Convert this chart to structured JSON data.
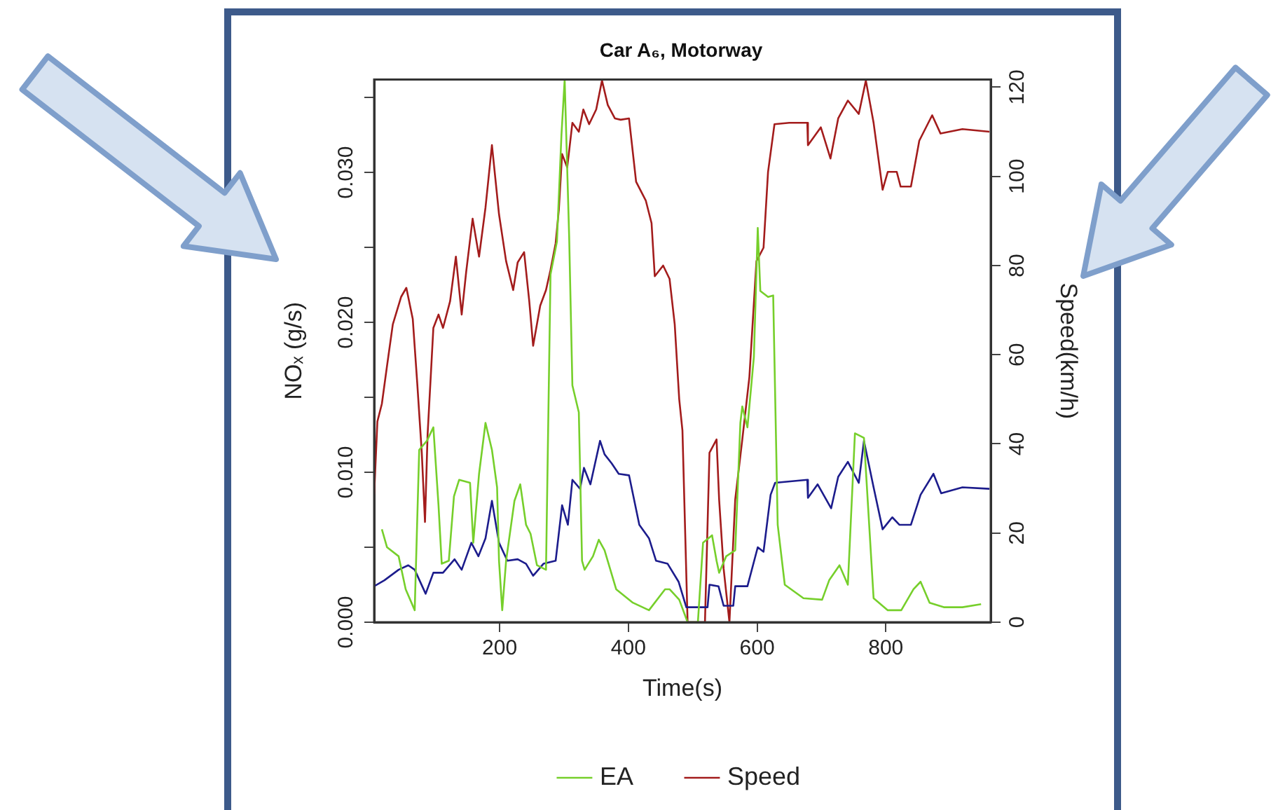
{
  "chart_data": {
    "type": "line",
    "title": "Car A₆, Motorway",
    "xlabel": "Time(s)",
    "ylabel": "NOₓ (g/s)",
    "y2label": "Speed(km/h)",
    "xlim": [
      5,
      963
    ],
    "xticks": [
      200,
      400,
      600,
      800
    ],
    "ylim": [
      0,
      0.0362
    ],
    "yticks": [
      {
        "value": 0,
        "label": "0.000"
      },
      {
        "value": 0.005,
        "label": null
      },
      {
        "value": 0.01,
        "label": "0.010"
      },
      {
        "value": 0.015,
        "label": null
      },
      {
        "value": 0.02,
        "label": "0.020"
      },
      {
        "value": 0.025,
        "label": null
      },
      {
        "value": 0.03,
        "label": "0.030"
      },
      {
        "value": 0.035,
        "label": null
      }
    ],
    "y2lim": [
      0,
      121.7
    ],
    "y2ticks": [
      0,
      20,
      40,
      60,
      80,
      100,
      120
    ],
    "legend": "bottom",
    "marker": "none",
    "series": [
      {
        "name": "EA",
        "color": "#76cf2b",
        "x": [
          17,
          25,
          43,
          54,
          68,
          75,
          87,
          97,
          105,
          110,
          121,
          129,
          137,
          154,
          159,
          168,
          178,
          188,
          196,
          199,
          204,
          210,
          223,
          232,
          241,
          248,
          258,
          272,
          279,
          289,
          296,
          301,
          308,
          313,
          323,
          328,
          332,
          345,
          354,
          363,
          381,
          407,
          432,
          457,
          464,
          479,
          492,
          508,
          516,
          530,
          537,
          541,
          552,
          566,
          574,
          577,
          585,
          595,
          601,
          605,
          617,
          625,
          632,
          643,
          672,
          701,
          712,
          728,
          741,
          752,
          766,
          781,
          803,
          824,
          843,
          854,
          868,
          890,
          919,
          948
        ],
        "values": [
          0.0062,
          0.005,
          0.0044,
          0.0022,
          0.0008,
          0.0115,
          0.0121,
          0.013,
          0.0078,
          0.0039,
          0.0041,
          0.0084,
          0.0095,
          0.0093,
          0.0053,
          0.0099,
          0.0133,
          0.0115,
          0.009,
          0.0041,
          0.0008,
          0.0041,
          0.0081,
          0.0092,
          0.0065,
          0.0059,
          0.0038,
          0.0035,
          0.0232,
          0.0254,
          0.0325,
          0.0362,
          0.0257,
          0.0158,
          0.014,
          0.0041,
          0.0035,
          0.0044,
          0.0055,
          0.0048,
          0.0022,
          0.0013,
          0.0008,
          0.0022,
          0.0022,
          0.0015,
          0,
          0,
          0.0053,
          0.0058,
          0.0041,
          0.0033,
          0.0044,
          0.0048,
          0.0133,
          0.0144,
          0.013,
          0.0177,
          0.0263,
          0.0221,
          0.0217,
          0.0218,
          0.0065,
          0.0025,
          0.0016,
          0.0015,
          0.0028,
          0.0038,
          0.0025,
          0.0126,
          0.0123,
          0.0016,
          0.0008,
          0.0008,
          0.0022,
          0.0027,
          0.0013,
          0.001,
          0.001,
          0.0012
        ]
      },
      {
        "color": "#1c1c8c",
        "x": [
          5,
          21,
          43,
          58,
          68,
          85,
          97,
          112,
          130,
          141,
          156,
          167,
          178,
          188,
          199,
          212,
          228,
          241,
          252,
          268,
          287,
          297,
          306,
          313,
          325,
          331,
          341,
          356,
          363,
          374,
          385,
          401,
          417,
          432,
          443,
          461,
          478,
          490,
          523,
          526,
          540,
          548,
          563,
          566,
          585,
          601,
          610,
          621,
          628,
          678,
          679,
          694,
          715,
          726,
          741,
          758,
          766,
          781,
          795,
          810,
          821,
          839,
          854,
          874,
          886,
          919,
          961
        ],
        "values": [
          0.0024,
          0.0028,
          0.0035,
          0.0038,
          0.0035,
          0.0019,
          0.0033,
          0.0033,
          0.0042,
          0.0035,
          0.0053,
          0.0044,
          0.0056,
          0.0081,
          0.0053,
          0.0041,
          0.0042,
          0.0039,
          0.0031,
          0.0039,
          0.0041,
          0.0078,
          0.0065,
          0.0095,
          0.0089,
          0.0103,
          0.0092,
          0.0121,
          0.0112,
          0.0106,
          0.0099,
          0.0098,
          0.0065,
          0.0056,
          0.0041,
          0.0039,
          0.0027,
          0.001,
          0.001,
          0.0025,
          0.0024,
          0.0011,
          0.0011,
          0.0024,
          0.0024,
          0.005,
          0.0047,
          0.0085,
          0.0093,
          0.0095,
          0.0083,
          0.0092,
          0.0076,
          0.0097,
          0.0107,
          0.0093,
          0.0121,
          0.009,
          0.0062,
          0.007,
          0.0065,
          0.0065,
          0.0085,
          0.0099,
          0.0086,
          0.009,
          0.0089
        ]
      },
      {
        "name": "Speed",
        "color": "#a31c1c",
        "axis": "y2",
        "x": [
          5,
          10,
          17,
          25,
          34,
          47,
          55,
          65,
          72,
          79,
          84,
          88,
          97,
          105,
          112,
          123,
          132,
          141,
          148,
          158,
          168,
          178,
          188,
          199,
          210,
          221,
          228,
          238,
          246,
          252,
          263,
          272,
          279,
          287,
          292,
          297,
          305,
          313,
          323,
          330,
          339,
          350,
          359,
          368,
          379,
          388,
          401,
          412,
          427,
          436,
          441,
          454,
          464,
          472,
          479,
          484,
          492,
          519,
          526,
          537,
          541,
          548,
          557,
          566,
          577,
          588,
          599,
          610,
          617,
          627,
          650,
          678,
          679,
          699,
          714,
          726,
          741,
          758,
          769,
          781,
          795,
          803,
          817,
          823,
          839,
          852,
          872,
          885,
          919,
          961
        ],
        "values": [
          28.6,
          45,
          49,
          57.5,
          66.8,
          73,
          75,
          68,
          53.5,
          38,
          22.5,
          42,
          66,
          69,
          66,
          72,
          82,
          69,
          78.6,
          90.5,
          82,
          93,
          107,
          91.5,
          81,
          74.5,
          80.7,
          83,
          72,
          62,
          71,
          74.5,
          79,
          85,
          92.6,
          105,
          102,
          112,
          110,
          115,
          111.7,
          115,
          121.5,
          116,
          113,
          112.7,
          113,
          98.8,
          94.6,
          89.5,
          77.6,
          80,
          77,
          66.8,
          50,
          43,
          0,
          0,
          38,
          41,
          27.5,
          12,
          0,
          27.5,
          41,
          55,
          81,
          84,
          101,
          111.7,
          112,
          112,
          107,
          111,
          104,
          113,
          117,
          114,
          121.5,
          112,
          97,
          101,
          101,
          97.7,
          97.7,
          108,
          113.7,
          109.6,
          110.6,
          110
        ]
      }
    ]
  }
}
